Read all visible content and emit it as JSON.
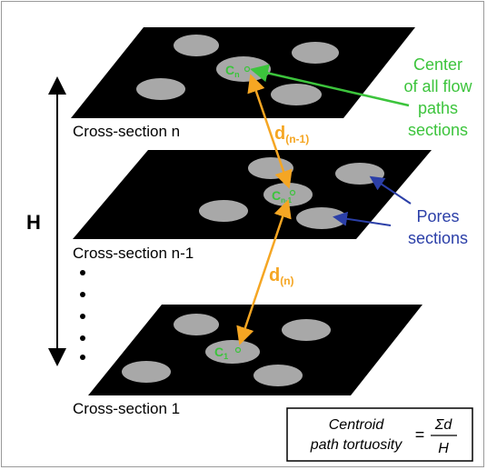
{
  "labels": {
    "cross_section_n": "Cross-section n",
    "cross_section_n_minus_1": "Cross-section n-1",
    "cross_section_1": "Cross-section 1",
    "height": "H",
    "d_n_minus_1_main": "d",
    "d_n_minus_1_sub": "(n-1)",
    "d_n_main": "d",
    "d_n_sub": "(n)",
    "centroid_main": "C",
    "centroid_sub_n": "n",
    "centroid_sub_n1": "n-1",
    "centroid_sub_1": "1",
    "center_annotation": [
      "Center",
      "of all flow",
      "paths",
      "sections"
    ],
    "pores_annotation": [
      "Pores",
      "sections"
    ],
    "dots": "•"
  },
  "formula": {
    "lhs_line1": "Centroid",
    "lhs_line2": "path tortuosity",
    "equals": "=",
    "numerator": "Σd",
    "denominator": "H"
  },
  "colors": {
    "plate": "#000000",
    "pore": "#a8a8a8",
    "centroid": "#3cc43c",
    "d_arrow": "#f5a623",
    "pores_arrow": "#2b3fa8",
    "text": "#000000"
  }
}
